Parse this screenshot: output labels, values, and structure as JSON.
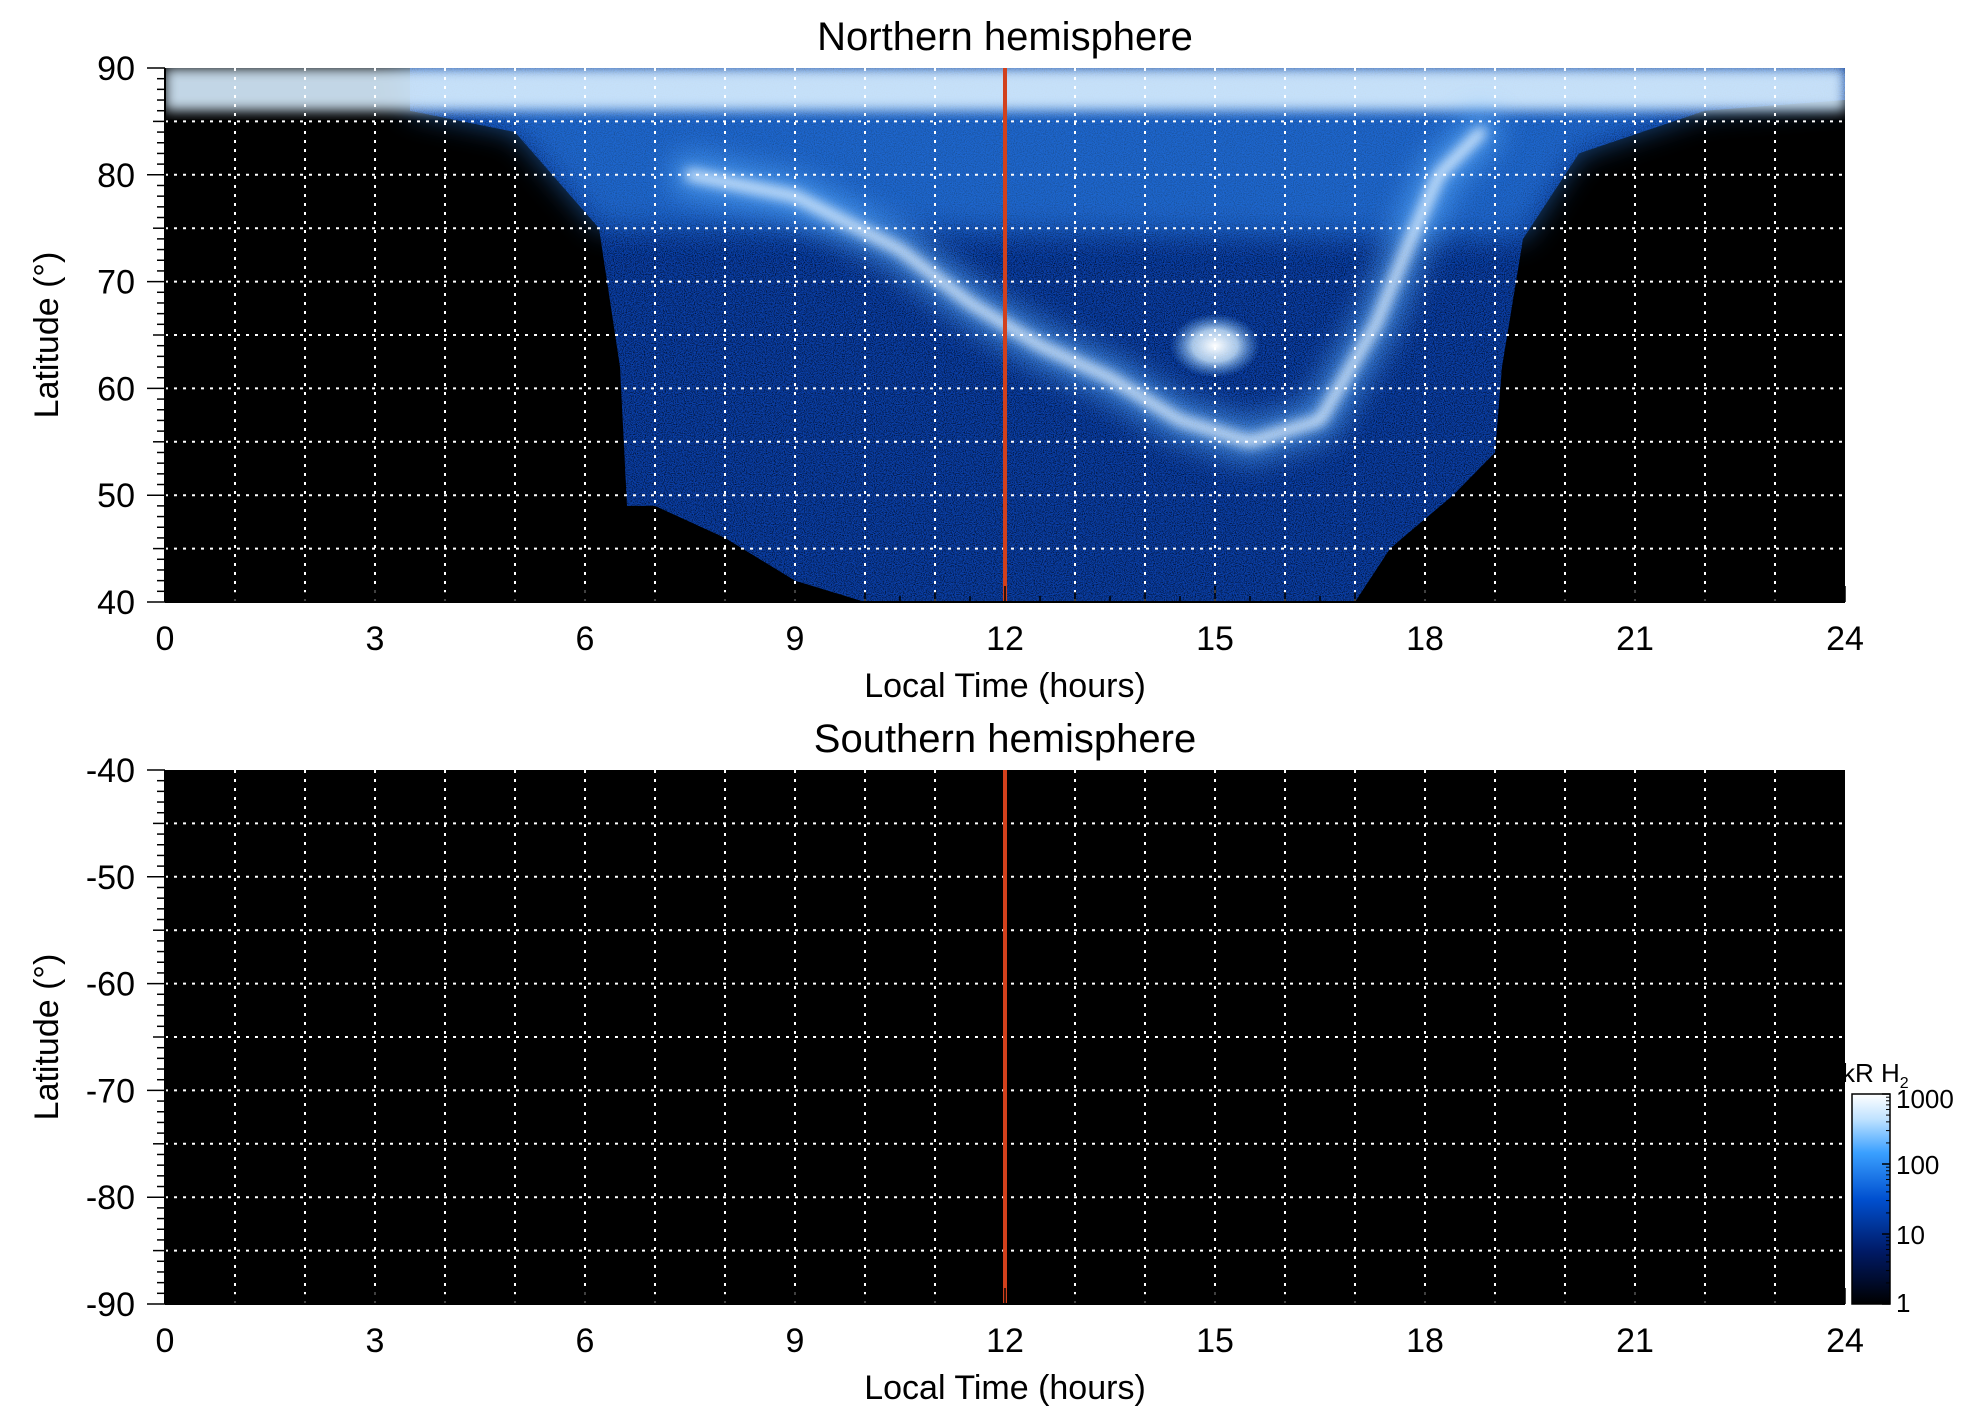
{
  "chart_data": [
    {
      "type": "heatmap",
      "title": "Northern hemisphere",
      "xlabel": "Local Time (hours)",
      "ylabel": "Latitude (°)",
      "xlim": [
        0,
        24
      ],
      "ylim": [
        40,
        90
      ],
      "xticks": [
        0,
        3,
        6,
        9,
        12,
        15,
        18,
        21,
        24
      ],
      "yticks": [
        40,
        50,
        60,
        70,
        80,
        90
      ],
      "grid": true,
      "grid_style": "dotted",
      "marker_line": {
        "x": 12,
        "color": "#d2401c"
      },
      "background": "#000000",
      "features": {
        "polar_cap_band": {
          "lat_min": 86,
          "lat_max": 90,
          "lt_min": 0,
          "lt_max": 24
        },
        "main_oval": [
          [
            7.5,
            80
          ],
          [
            9,
            78
          ],
          [
            10.5,
            73
          ],
          [
            11.5,
            68
          ],
          [
            12.5,
            64
          ],
          [
            13.5,
            61
          ],
          [
            14.5,
            57
          ],
          [
            15.5,
            55
          ],
          [
            16.5,
            57
          ],
          [
            17.3,
            66
          ],
          [
            17.8,
            74
          ],
          [
            18.2,
            80
          ],
          [
            18.8,
            84
          ]
        ],
        "emission_region_outline": [
          [
            3.5,
            86
          ],
          [
            5,
            84
          ],
          [
            6.2,
            75
          ],
          [
            6.5,
            62
          ],
          [
            6.6,
            49
          ],
          [
            7,
            49
          ],
          [
            8,
            46
          ],
          [
            9,
            42
          ],
          [
            10,
            40
          ],
          [
            17,
            40
          ],
          [
            17.5,
            45
          ],
          [
            18.4,
            50
          ],
          [
            19,
            54
          ],
          [
            19.1,
            62
          ],
          [
            19.4,
            74
          ],
          [
            20.2,
            82
          ],
          [
            22,
            86
          ],
          [
            24,
            87
          ]
        ],
        "bright_spot": {
          "lt": 15,
          "lat": 64
        }
      }
    },
    {
      "type": "heatmap",
      "title": "Southern hemisphere",
      "xlabel": "Local Time (hours)",
      "ylabel": "Latitude (°)",
      "xlim": [
        0,
        24
      ],
      "ylim": [
        -90,
        -40
      ],
      "xticks": [
        0,
        3,
        6,
        9,
        12,
        15,
        18,
        21,
        24
      ],
      "yticks": [
        -40,
        -50,
        -60,
        -70,
        -80,
        -90
      ],
      "grid": true,
      "grid_style": "dotted",
      "marker_line": {
        "x": 12,
        "color": "#d2401c"
      },
      "background": "#000000",
      "features": {}
    }
  ],
  "colorbar": {
    "label_main": "kR H",
    "label_sub": "2",
    "scale": "log",
    "range": [
      1,
      1000
    ],
    "ticks": [
      "1000",
      "100",
      "10",
      "1"
    ],
    "tick_values": [
      1000,
      100,
      10,
      1
    ],
    "colors": [
      "#000000",
      "#001a66",
      "#0050d0",
      "#3aa0ff",
      "#bfe2ff",
      "#ffffff"
    ]
  }
}
